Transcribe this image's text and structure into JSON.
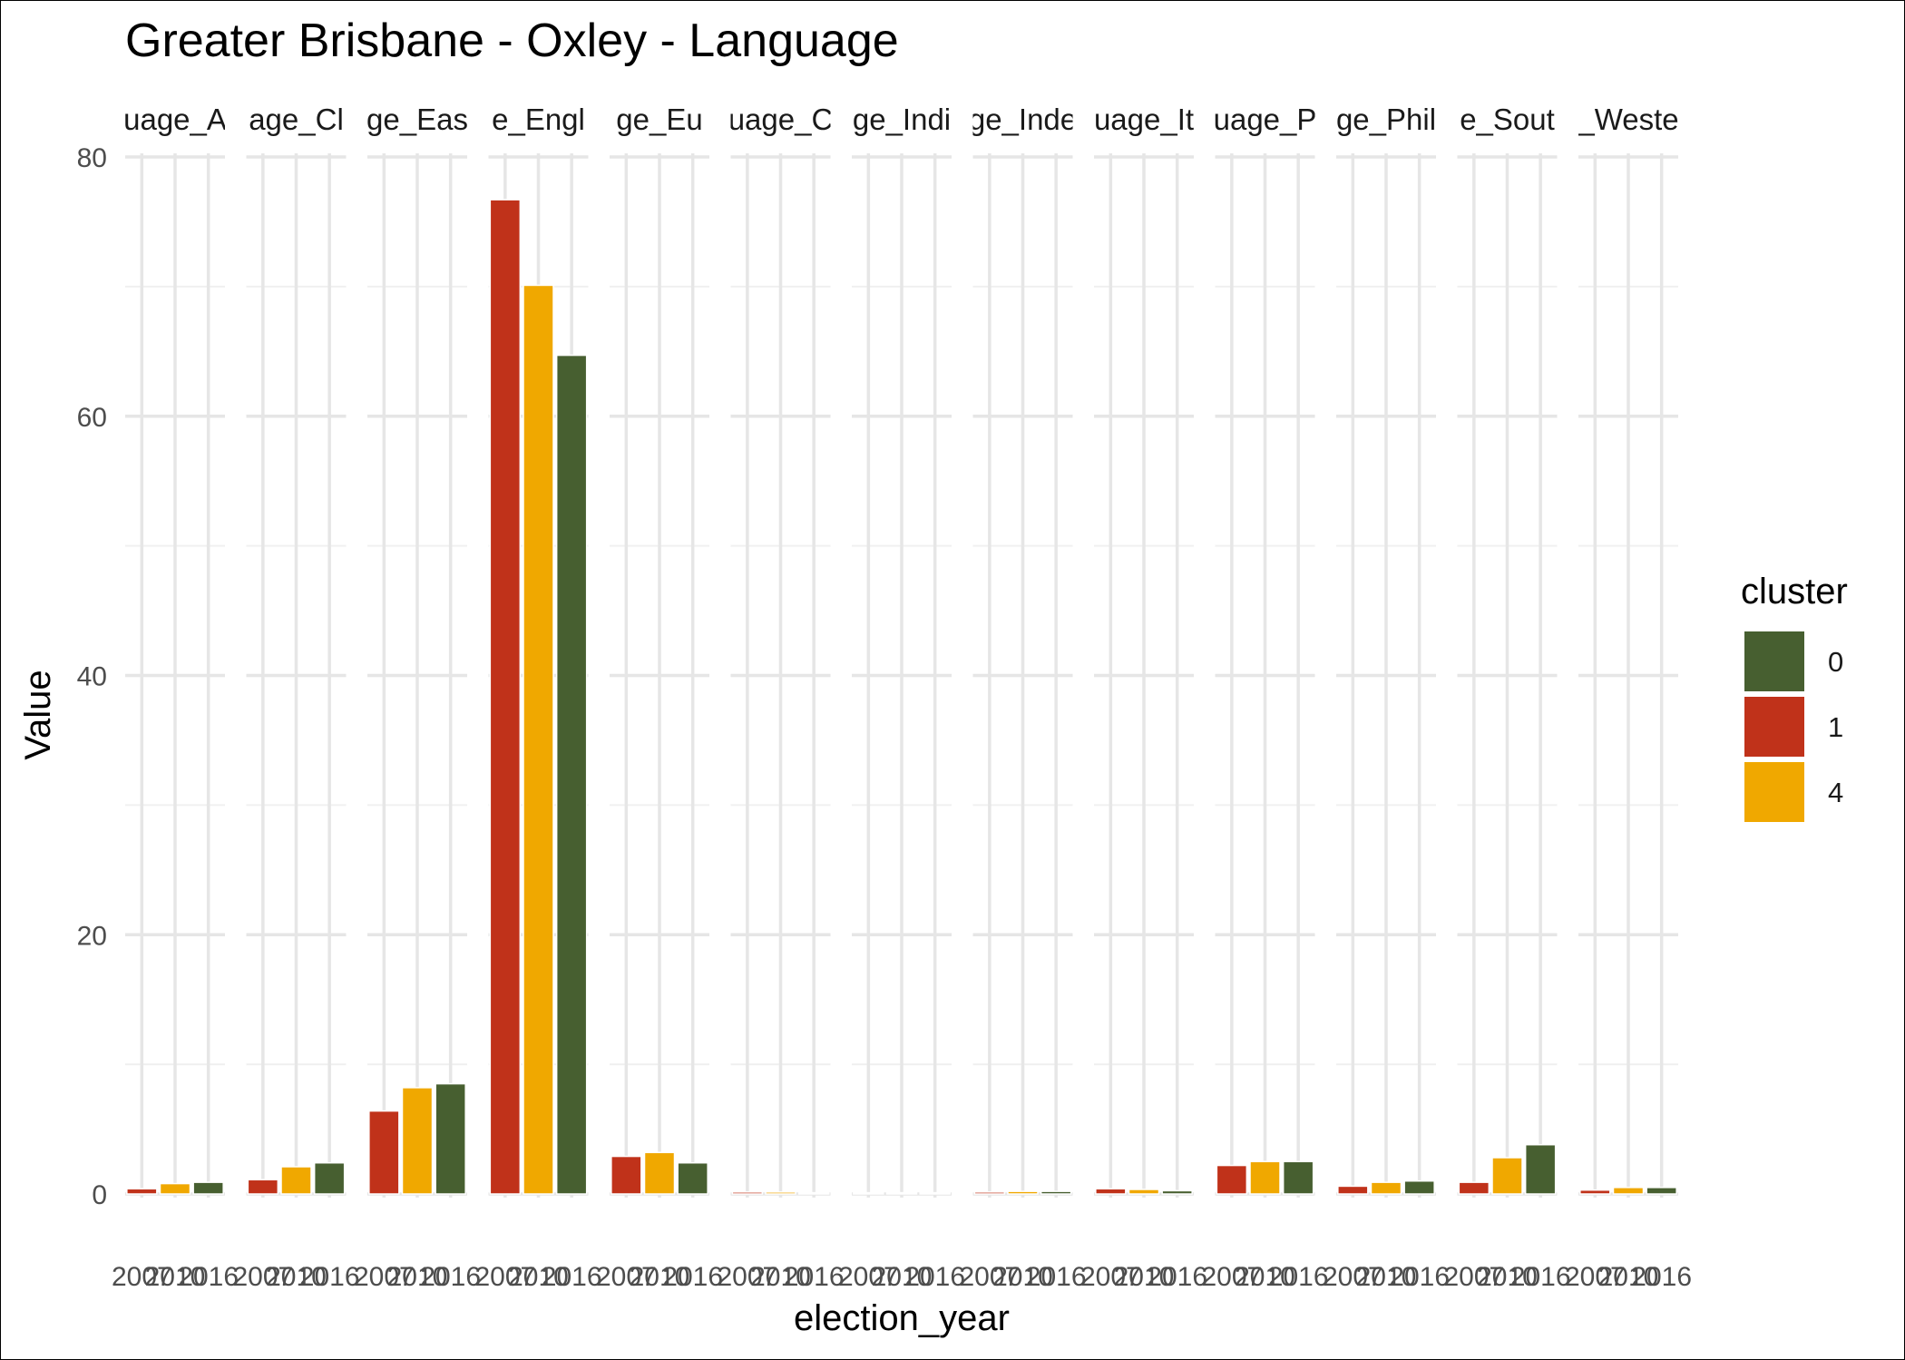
{
  "chart_data": {
    "type": "bar",
    "title": "Greater Brisbane - Oxley - Language",
    "xlabel": "election_year",
    "ylabel": "Value",
    "ylim": [
      0,
      80
    ],
    "y_ticks": [
      "0",
      "20",
      "40",
      "60",
      "80"
    ],
    "grid": true,
    "legend_placement": "right",
    "legend": {
      "title": "cluster",
      "entries": [
        {
          "label": "0",
          "color": "#475f30"
        },
        {
          "label": "1",
          "color": "#c0321a"
        },
        {
          "label": "4",
          "color": "#f0a800"
        }
      ]
    },
    "x_categories": [
      "2007",
      "2010",
      "2016"
    ],
    "facets": [
      {
        "strip": "uage_A",
        "bars": [
          {
            "x": "2007",
            "cluster": "1",
            "value": 0.4
          },
          {
            "x": "2010",
            "cluster": "4",
            "value": 0.8
          },
          {
            "x": "2016",
            "cluster": "0",
            "value": 0.9
          }
        ]
      },
      {
        "strip": "age_Cl",
        "bars": [
          {
            "x": "2007",
            "cluster": "1",
            "value": 1.1
          },
          {
            "x": "2010",
            "cluster": "4",
            "value": 2.1
          },
          {
            "x": "2016",
            "cluster": "0",
            "value": 2.4
          }
        ]
      },
      {
        "strip": "ge_Eas",
        "bars": [
          {
            "x": "2007",
            "cluster": "1",
            "value": 6.4
          },
          {
            "x": "2010",
            "cluster": "4",
            "value": 8.2
          },
          {
            "x": "2016",
            "cluster": "0",
            "value": 8.5
          }
        ]
      },
      {
        "strip": "e_Engl",
        "bars": [
          {
            "x": "2007",
            "cluster": "1",
            "value": 76.7
          },
          {
            "x": "2010",
            "cluster": "4",
            "value": 70.1
          },
          {
            "x": "2016",
            "cluster": "0",
            "value": 64.7
          }
        ]
      },
      {
        "strip": "ge_Eu",
        "bars": [
          {
            "x": "2007",
            "cluster": "1",
            "value": 2.9
          },
          {
            "x": "2010",
            "cluster": "4",
            "value": 3.2
          },
          {
            "x": "2016",
            "cluster": "0",
            "value": 2.4
          }
        ]
      },
      {
        "strip": "uage_C",
        "bars": [
          {
            "x": "2007",
            "cluster": "1",
            "value": 0.15
          },
          {
            "x": "2010",
            "cluster": "4",
            "value": 0.15
          },
          {
            "x": "2016",
            "cluster": "0",
            "value": 0.1
          }
        ]
      },
      {
        "strip": "ge_Indi",
        "bars": [
          {
            "x": "2007",
            "cluster": "1",
            "value": 0.1
          },
          {
            "x": "2010",
            "cluster": "4",
            "value": 0.1
          },
          {
            "x": "2016",
            "cluster": "0",
            "value": 0.1
          }
        ]
      },
      {
        "strip": "ge_Inde",
        "bars": [
          {
            "x": "2007",
            "cluster": "1",
            "value": 0.15
          },
          {
            "x": "2010",
            "cluster": "4",
            "value": 0.2
          },
          {
            "x": "2016",
            "cluster": "0",
            "value": 0.2
          }
        ]
      },
      {
        "strip": "uage_It",
        "bars": [
          {
            "x": "2007",
            "cluster": "1",
            "value": 0.4
          },
          {
            "x": "2010",
            "cluster": "4",
            "value": 0.35
          },
          {
            "x": "2016",
            "cluster": "0",
            "value": 0.25
          }
        ]
      },
      {
        "strip": "uage_P",
        "bars": [
          {
            "x": "2007",
            "cluster": "1",
            "value": 2.2
          },
          {
            "x": "2010",
            "cluster": "4",
            "value": 2.5
          },
          {
            "x": "2016",
            "cluster": "0",
            "value": 2.5
          }
        ]
      },
      {
        "strip": "ge_Phil",
        "bars": [
          {
            "x": "2007",
            "cluster": "1",
            "value": 0.6
          },
          {
            "x": "2010",
            "cluster": "4",
            "value": 0.9
          },
          {
            "x": "2016",
            "cluster": "0",
            "value": 1.0
          }
        ]
      },
      {
        "strip": "e_Sout",
        "bars": [
          {
            "x": "2007",
            "cluster": "1",
            "value": 0.9
          },
          {
            "x": "2010",
            "cluster": "4",
            "value": 2.8
          },
          {
            "x": "2016",
            "cluster": "0",
            "value": 3.8
          }
        ]
      },
      {
        "strip": "_Weste",
        "bars": [
          {
            "x": "2007",
            "cluster": "1",
            "value": 0.3
          },
          {
            "x": "2010",
            "cluster": "4",
            "value": 0.5
          },
          {
            "x": "2016",
            "cluster": "0",
            "value": 0.5
          }
        ]
      }
    ]
  }
}
